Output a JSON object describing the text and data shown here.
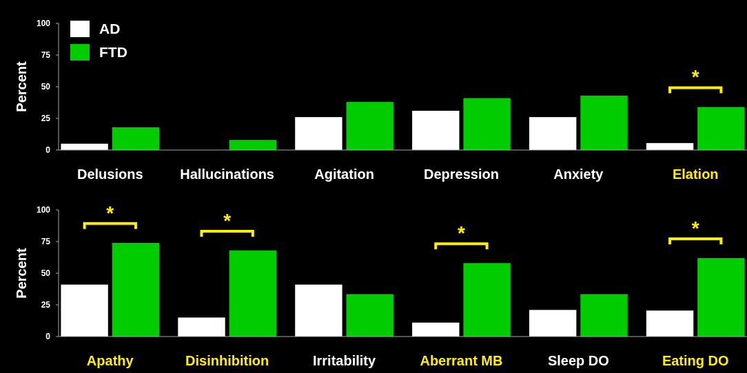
{
  "chart_data": [
    {
      "type": "bar",
      "ylabel": "Percent",
      "categories": [
        "Delusions",
        "Hallucinations",
        "Agitation",
        "Depression",
        "Anxiety",
        "Elation"
      ],
      "series": [
        {
          "name": "AD",
          "color": "#ffffff",
          "values": [
            5,
            0,
            26,
            31,
            26,
            5.5
          ]
        },
        {
          "name": "FTD",
          "color": "#00cc00",
          "values": [
            18,
            8,
            38,
            41,
            43,
            34
          ]
        }
      ],
      "ylim": [
        0,
        100
      ],
      "yticks": [
        0,
        25,
        50,
        75,
        100
      ],
      "legend": "top left",
      "grid": false,
      "annotations": [
        {
          "text": "*",
          "x": "Elation",
          "y": 34
        }
      ]
    },
    {
      "type": "bar",
      "ylabel": "Percent",
      "categories": [
        "Apathy",
        "Disinhibition",
        "Irritability",
        "Aberrant MB",
        "Sleep DO",
        "Eating DO"
      ],
      "series": [
        {
          "color": "#ffffff",
          "values": [
            41,
            15,
            41,
            11,
            21,
            20.5
          ]
        },
        {
          "color": "#00cc00",
          "values": [
            74,
            68,
            33.5,
            58,
            33.5,
            62
          ]
        }
      ],
      "ylim": [
        0,
        100
      ],
      "yticks": [
        0,
        25,
        50,
        75,
        100
      ],
      "legend": false,
      "grid": false,
      "annotations": [
        {
          "text": "*",
          "x": "Apathy",
          "y": 74
        },
        {
          "text": "*",
          "x": "Disinhibition",
          "y": 68
        },
        {
          "text": "*",
          "x": "Aberrant MB",
          "y": 58
        },
        {
          "text": "*",
          "x": "Eating DO",
          "y": 62
        }
      ]
    }
  ]
}
